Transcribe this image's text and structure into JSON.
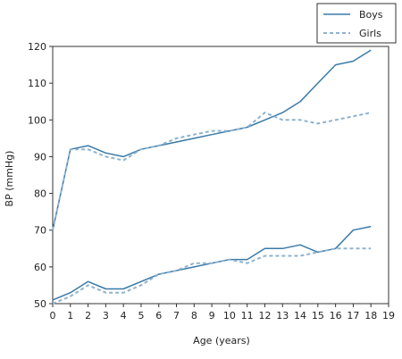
{
  "chart_data": {
    "type": "line",
    "xlabel": "Age (years)",
    "ylabel": "BP (mmHg)",
    "xlim": [
      0,
      19
    ],
    "ylim": [
      50,
      120
    ],
    "x_ticks": [
      0,
      1,
      2,
      3,
      4,
      5,
      6,
      7,
      8,
      9,
      10,
      11,
      12,
      13,
      14,
      15,
      16,
      17,
      18,
      19
    ],
    "y_ticks": [
      50,
      60,
      70,
      80,
      90,
      100,
      110,
      120
    ],
    "grid": false,
    "legend_position": "top-right",
    "series": [
      {
        "name": "Boys",
        "measure": "systolic",
        "style": "solid",
        "color": "#3a7aa8",
        "x": [
          0,
          1,
          2,
          3,
          4,
          5,
          6,
          7,
          8,
          9,
          10,
          11,
          12,
          13,
          14,
          15,
          16,
          17,
          18
        ],
        "y": [
          70,
          92,
          93,
          91,
          90,
          92,
          93,
          94,
          95,
          96,
          97,
          98,
          100,
          102,
          105,
          110,
          115,
          116,
          119
        ]
      },
      {
        "name": "Girls",
        "measure": "systolic",
        "style": "dashed",
        "color": "#8fb3d0",
        "x": [
          0,
          1,
          2,
          3,
          4,
          5,
          6,
          7,
          8,
          9,
          10,
          11,
          12,
          13,
          14,
          15,
          16,
          17,
          18
        ],
        "y": [
          70,
          92,
          92,
          90,
          89,
          92,
          93,
          95,
          96,
          97,
          97,
          98,
          102,
          100,
          100,
          99,
          100,
          101,
          102
        ]
      },
      {
        "name": "Boys",
        "measure": "diastolic",
        "style": "solid",
        "color": "#3a7aa8",
        "x": [
          0,
          1,
          2,
          3,
          4,
          5,
          6,
          7,
          8,
          9,
          10,
          11,
          12,
          13,
          14,
          15,
          16,
          17,
          18
        ],
        "y": [
          51,
          53,
          56,
          54,
          54,
          56,
          58,
          59,
          60,
          61,
          62,
          62,
          65,
          65,
          66,
          64,
          65,
          70,
          71
        ]
      },
      {
        "name": "Girls",
        "measure": "diastolic",
        "style": "dashed",
        "color": "#8fb3d0",
        "x": [
          0,
          1,
          2,
          3,
          4,
          5,
          6,
          7,
          8,
          9,
          10,
          11,
          12,
          13,
          14,
          15,
          16,
          17,
          18
        ],
        "y": [
          50,
          52,
          55,
          53,
          53,
          55,
          58,
          59,
          61,
          61,
          62,
          61,
          63,
          63,
          63,
          64,
          65,
          65,
          65
        ]
      }
    ],
    "legend": [
      {
        "label": "Boys",
        "style": "solid",
        "color": "#3a7aa8"
      },
      {
        "label": "Girls",
        "style": "dashed",
        "color": "#8fb3d0"
      }
    ]
  }
}
